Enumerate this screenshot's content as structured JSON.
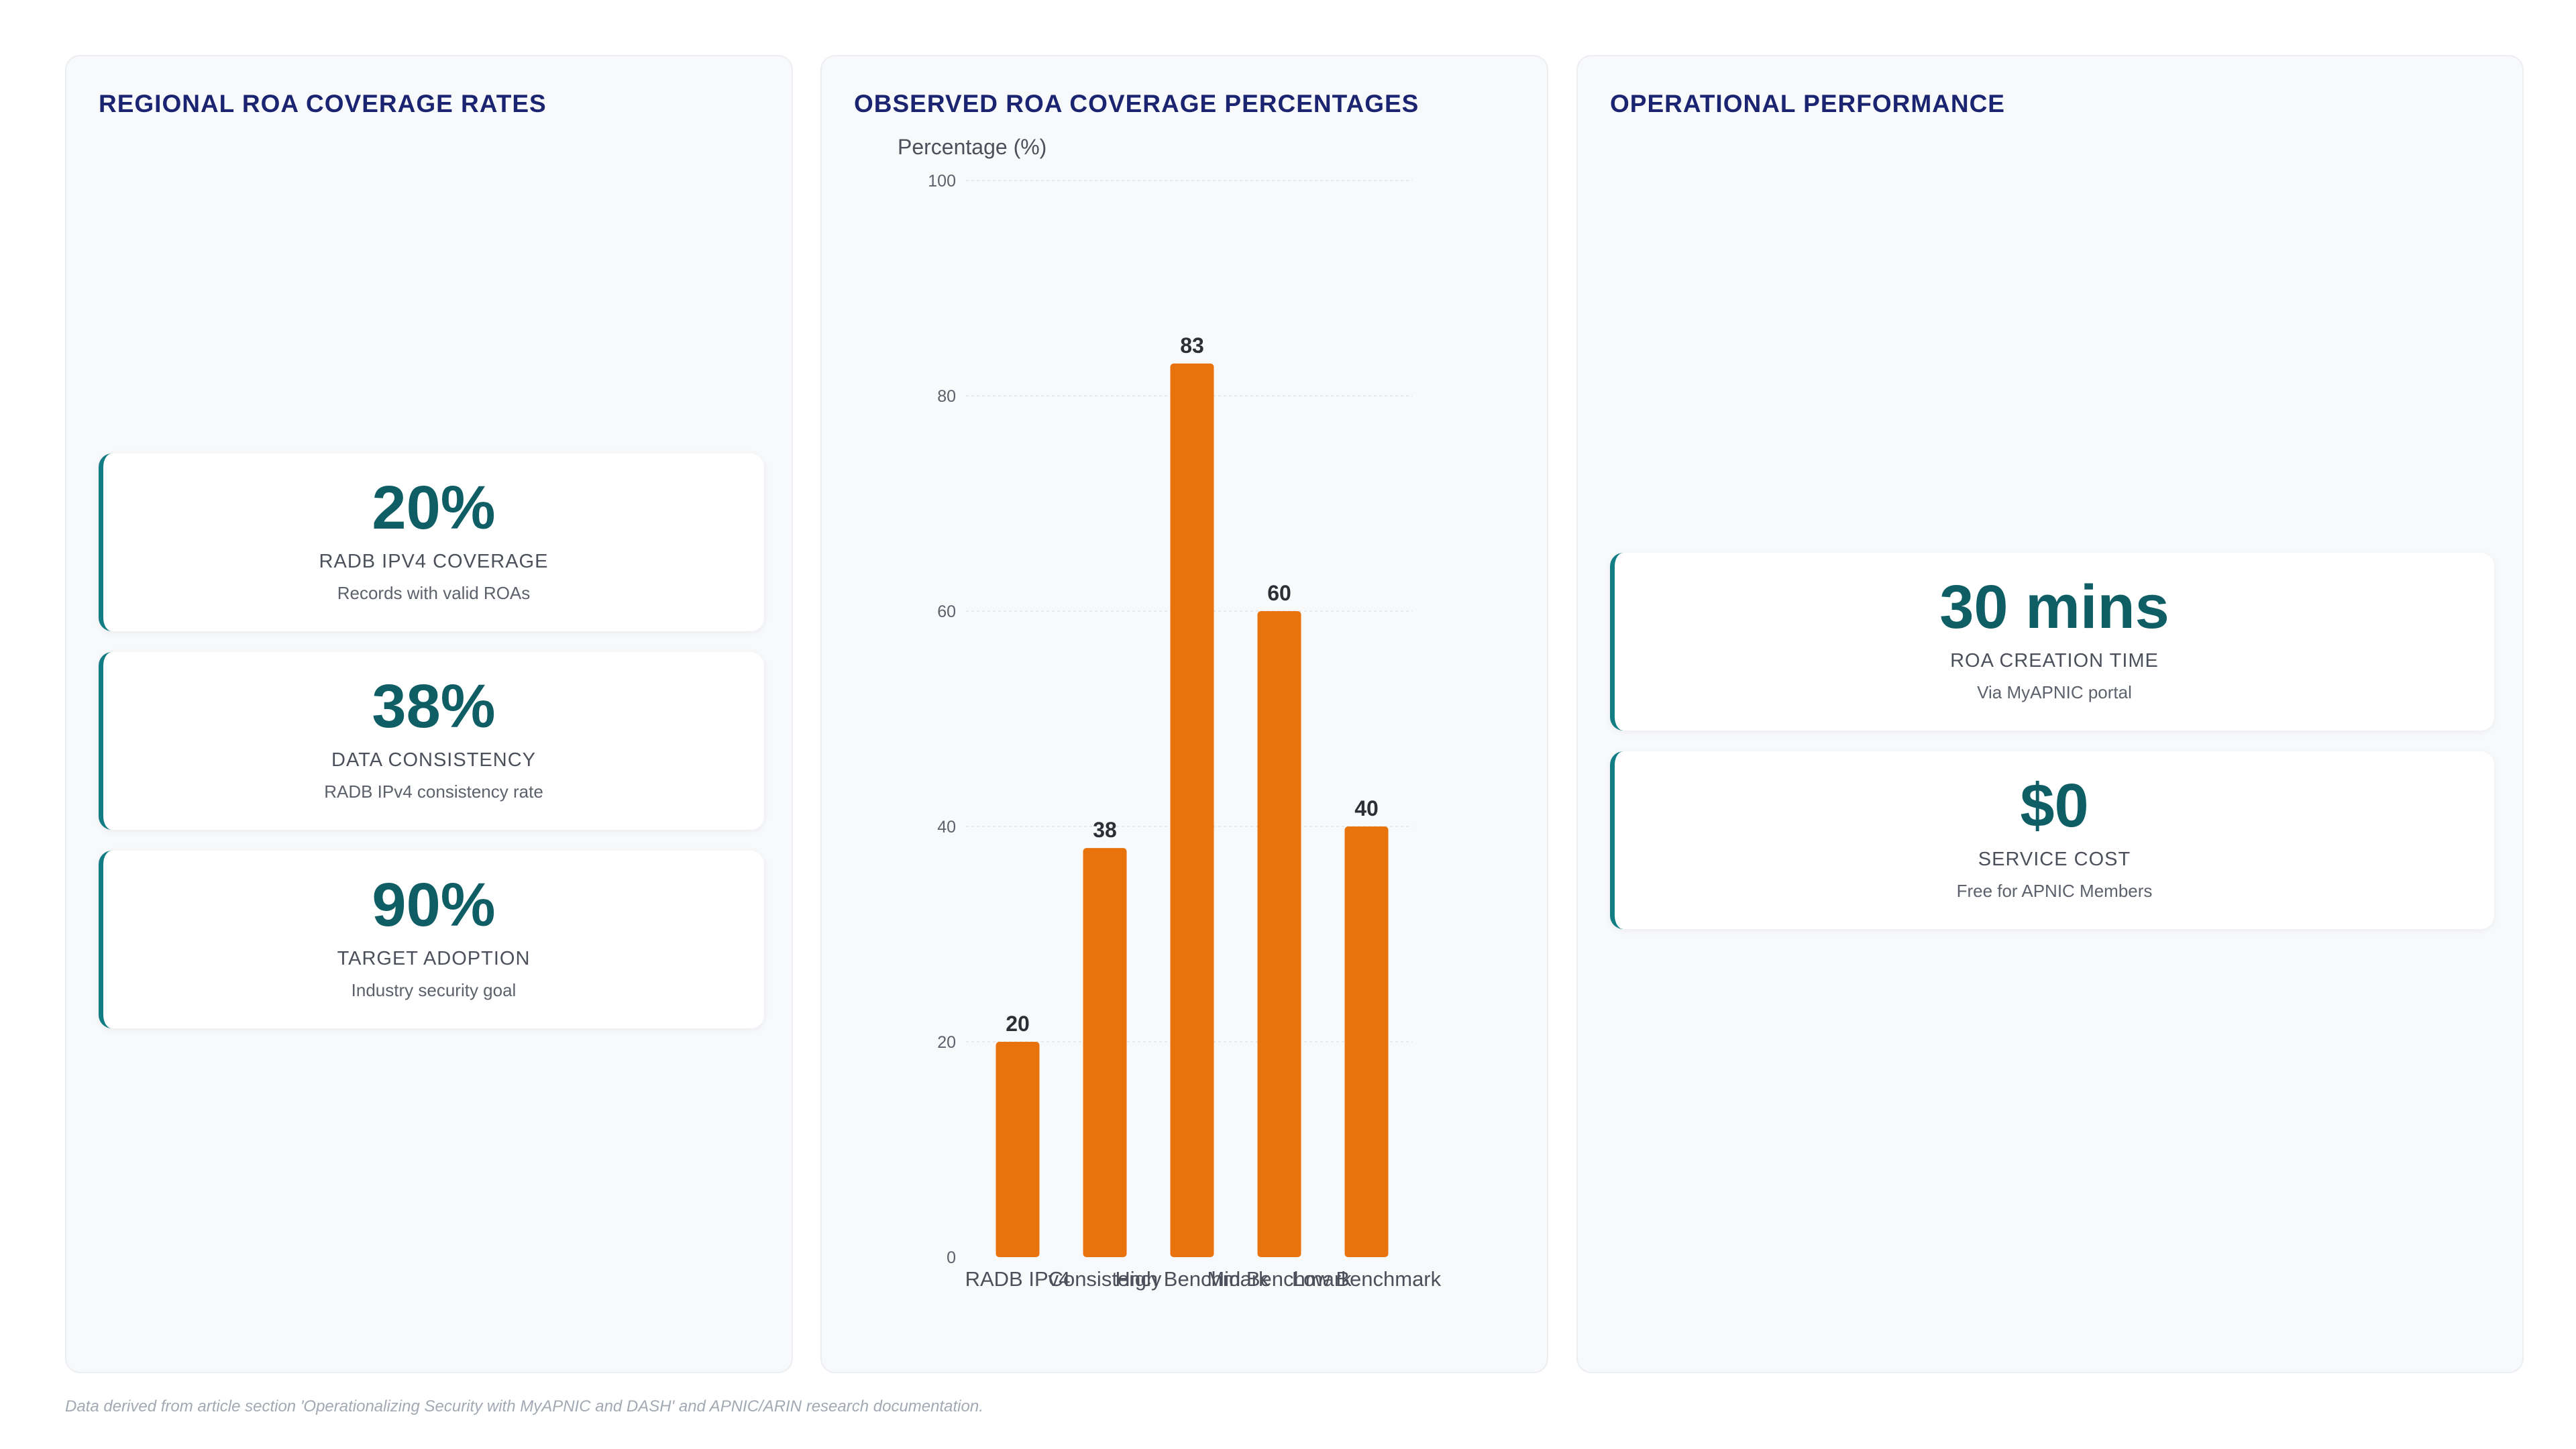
{
  "regional": {
    "title": "REGIONAL ROA COVERAGE RATES",
    "cards": [
      {
        "value": "20%",
        "label": "RADB IPV4 COVERAGE",
        "sub": "Records with valid ROAs"
      },
      {
        "value": "38%",
        "label": "DATA CONSISTENCY",
        "sub": "RADB IPv4 consistency rate"
      },
      {
        "value": "90%",
        "label": "TARGET ADOPTION",
        "sub": "Industry security goal"
      }
    ]
  },
  "chart_data": {
    "type": "bar",
    "title": "OBSERVED ROA COVERAGE PERCENTAGES",
    "ylabel": "Percentage (%)",
    "xlabel": "",
    "categories": [
      "RADB IPv4",
      "Consistency",
      "High Benchmark",
      "Mid Benchmark",
      "Low Benchmark"
    ],
    "values": [
      20,
      38,
      83,
      60,
      40
    ],
    "ylim": [
      0,
      100
    ],
    "yticks": [
      0,
      20,
      40,
      60,
      80,
      100
    ],
    "grid": true,
    "bar_color": "#e8720c"
  },
  "operational": {
    "title": "OPERATIONAL PERFORMANCE",
    "cards": [
      {
        "value": "30 mins",
        "label": "ROA CREATION TIME",
        "sub": "Via MyAPNIC portal"
      },
      {
        "value": "$0",
        "label": "SERVICE COST",
        "sub": "Free for APNIC Members"
      }
    ]
  },
  "footnote": "Data derived from article section 'Operationalizing Security with MyAPNIC and DASH' and APNIC/ARIN research documentation."
}
